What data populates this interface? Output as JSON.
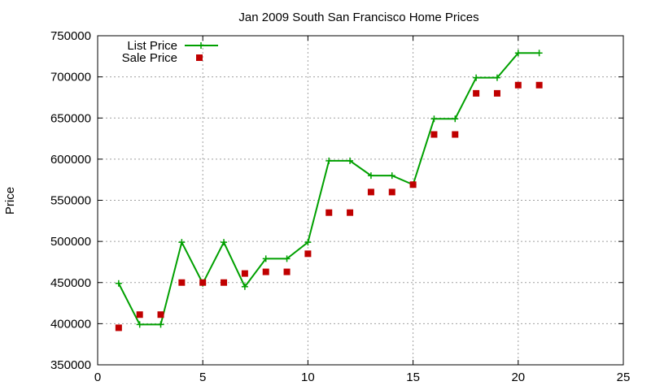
{
  "chart_data": {
    "type": "line",
    "title": "Jan 2009 South San Francisco Home Prices",
    "xlabel": "",
    "ylabel": "Price",
    "xlim": [
      0,
      25
    ],
    "ylim": [
      350000,
      750000
    ],
    "x_ticks": [
      0,
      5,
      10,
      15,
      20,
      25
    ],
    "y_ticks": [
      350000,
      400000,
      450000,
      500000,
      550000,
      600000,
      650000,
      700000,
      750000
    ],
    "grid": true,
    "legend_position": "top-left",
    "series": [
      {
        "name": "List Price",
        "style": "line-with-plus-markers",
        "color": "#00a000",
        "x": [
          1,
          2,
          3,
          4,
          5,
          6,
          7,
          8,
          9,
          10,
          11,
          12,
          13,
          14,
          15,
          16,
          17,
          18,
          19,
          20,
          21
        ],
        "y": [
          449000,
          399000,
          399000,
          499000,
          449000,
          499000,
          445000,
          479000,
          479000,
          499000,
          598000,
          598000,
          580000,
          580000,
          569000,
          649000,
          649000,
          699000,
          699000,
          729000,
          729000
        ]
      },
      {
        "name": "Sale Price",
        "style": "square-points",
        "color": "#c00000",
        "x": [
          1,
          2,
          3,
          4,
          5,
          6,
          7,
          8,
          9,
          10,
          11,
          12,
          13,
          14,
          15,
          16,
          17,
          18,
          19,
          20,
          21
        ],
        "y": [
          395000,
          411000,
          411000,
          450000,
          450000,
          450000,
          461000,
          463000,
          463000,
          485000,
          535000,
          535000,
          560000,
          560000,
          569000,
          630000,
          630000,
          680000,
          680000,
          690000,
          690000
        ]
      }
    ]
  }
}
